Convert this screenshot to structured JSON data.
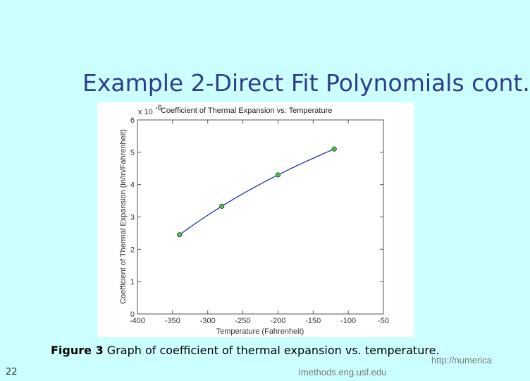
{
  "slide": {
    "title": "Example 2-Direct Fit Polynomials cont.",
    "caption_bold": "Figure 3",
    "caption_text": " Graph of coefficient of thermal expansion vs. temperature.",
    "slide_number": "22",
    "footer_url_part1": "http://numerica",
    "footer_url_part2": "lmethods.eng.usf.edu"
  },
  "chart_data": {
    "type": "line",
    "title": "Coefficient of Thermal Expansion vs. Temperature",
    "xlabel": "Temperature (Fahrenheit)",
    "ylabel": "Coefficient of Thermal Expansion (in/in/Fahrenheit)",
    "y_exponent_label": "x 10",
    "y_exponent_power": "-6",
    "xlim": [
      -400,
      -50
    ],
    "ylim": [
      0,
      6
    ],
    "x_ticks": [
      -400,
      -350,
      -300,
      -250,
      -200,
      -150,
      -100,
      -50
    ],
    "y_ticks": [
      0,
      1,
      2,
      3,
      4,
      5,
      6
    ],
    "grid": false,
    "line_color": "#2233aa",
    "marker_color": "#55bb55",
    "series": [
      {
        "values_x": [
          -340,
          -280,
          -200,
          -120
        ],
        "values_y": [
          2.45,
          3.33,
          4.3,
          5.1
        ]
      }
    ]
  }
}
